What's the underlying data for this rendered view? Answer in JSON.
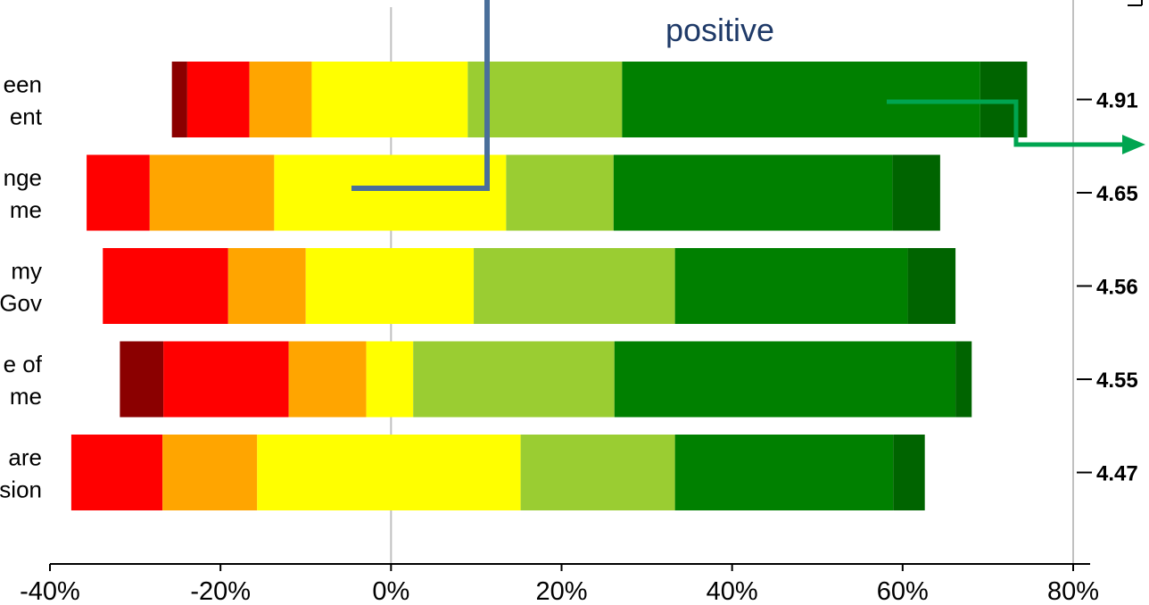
{
  "chart_data": {
    "type": "bar",
    "orientation": "horizontal",
    "stacked": "diverging",
    "xlim": [
      -40,
      80
    ],
    "x_ticks": [
      "-40%",
      "-20%",
      "0%",
      "20%",
      "40%",
      "60%",
      "80%"
    ],
    "x_tick_values": [
      -40,
      -20,
      0,
      20,
      40,
      60,
      80
    ],
    "grid": false,
    "zero_line": true,
    "rows": [
      {
        "label_lines": [
          "een",
          "ent"
        ],
        "score": "4.91",
        "start": -25.7,
        "segments": [
          1.8,
          7.3,
          7.3,
          18.3,
          18.1,
          42.0,
          5.5
        ]
      },
      {
        "label_lines": [
          "nge",
          "me"
        ],
        "score": "4.65",
        "start": -35.7,
        "segments": [
          0,
          7.4,
          14.6,
          27.2,
          12.6,
          32.7,
          5.6
        ]
      },
      {
        "label_lines": [
          "my",
          "Gov"
        ],
        "score": "4.56",
        "start": -33.8,
        "segments": [
          0,
          14.7,
          9.1,
          19.7,
          23.6,
          27.3,
          5.6
        ]
      },
      {
        "label_lines": [
          "e of",
          "me"
        ],
        "score": "4.55",
        "start": -31.8,
        "segments": [
          5.1,
          14.7,
          9.1,
          5.5,
          23.6,
          40.0,
          1.9
        ]
      },
      {
        "label_lines": [
          "are",
          "sion"
        ],
        "score": "4.47",
        "start": -37.5,
        "segments": [
          0,
          10.7,
          11.1,
          30.9,
          18.1,
          25.6,
          3.7
        ]
      }
    ],
    "segment_colors": [
      "#8b0000",
      "#ff0000",
      "#ffa500",
      "#ffff00",
      "#9acd32",
      "#008000",
      "#006400"
    ]
  },
  "annotations": {
    "top_text": "positive",
    "top_text_color": "#1f3a68",
    "line_color_blue": "#4a6f9a",
    "arrow_color_green": "#00a550"
  },
  "colors": {
    "axis": "#c0c0c0",
    "text": "#000000"
  }
}
